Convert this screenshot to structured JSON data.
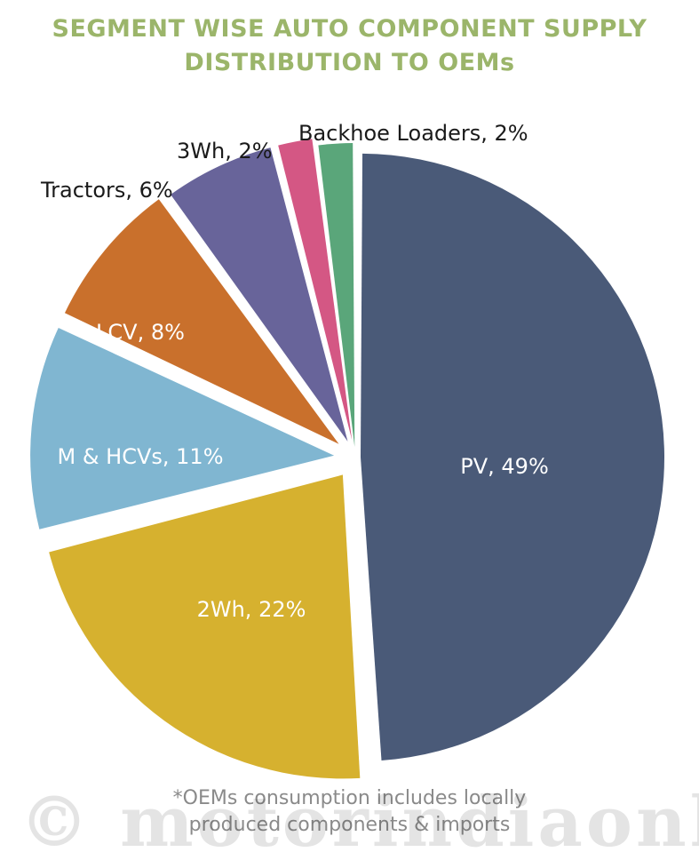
{
  "title_line1": "SEGMENT WISE AUTO COMPONENT SUPPLY",
  "title_line2": "DISTRIBUTION TO OEMs",
  "footnote_line1": "*OEMs consumption includes locally",
  "footnote_line2": "produced components & imports",
  "watermark": "© motorindiaonline.in",
  "chart_data": {
    "type": "pie",
    "unit": "%",
    "slices": [
      {
        "label": "PV, 49%",
        "name": "PV",
        "value": 49,
        "color": "#4a5a78"
      },
      {
        "label": "2Wh, 22%",
        "name": "2Wh",
        "value": 22,
        "color": "#d6b12f"
      },
      {
        "label": "M & HCVs, 11%",
        "name": "M & HCVs",
        "value": 11,
        "color": "#80b6d1"
      },
      {
        "label": "LCV, 8%",
        "name": "LCV",
        "value": 8,
        "color": "#c9702c"
      },
      {
        "label": "Tractors, 6%",
        "name": "Tractors",
        "value": 6,
        "color": "#68649a"
      },
      {
        "label": "3Wh, 2%",
        "name": "3Wh",
        "value": 2,
        "color": "#d45784"
      },
      {
        "label": "Backhoe Loaders, 2%",
        "name": "Backhoe Loaders",
        "value": 2,
        "color": "#5aa67a"
      }
    ]
  }
}
